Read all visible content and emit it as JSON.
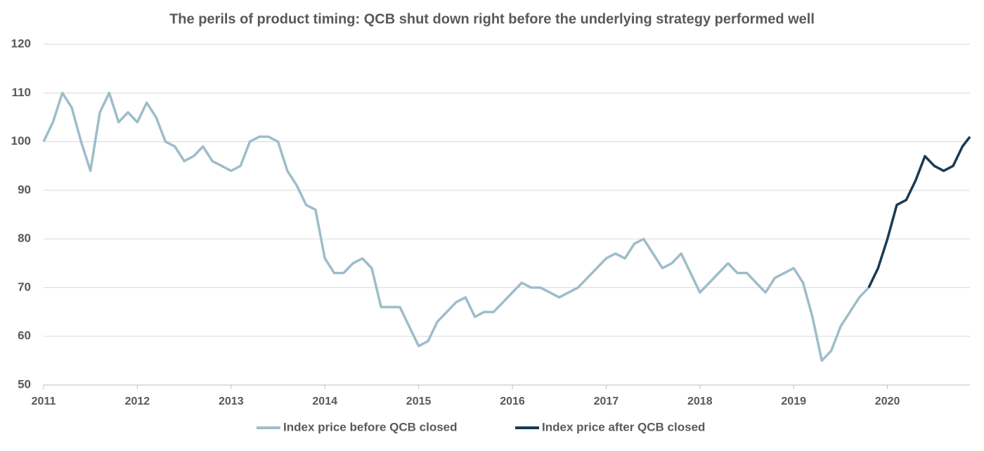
{
  "chart_data": {
    "type": "line",
    "title": "The perils of product timing: QCB shut down right before the underlying strategy performed well",
    "xlim": [
      2011,
      2020.88
    ],
    "xticks": [
      2011,
      2012,
      2013,
      2014,
      2015,
      2016,
      2017,
      2018,
      2019,
      2020
    ],
    "ylim": [
      50,
      120
    ],
    "yticks": [
      50,
      60,
      70,
      80,
      90,
      100,
      110,
      120
    ],
    "grid": true,
    "legend": "bottom",
    "series": [
      {
        "name": "Index price before QCB closed",
        "color": "#9dbdc9",
        "x": [
          2011,
          2011.1,
          2011.2,
          2011.3,
          2011.4,
          2011.5,
          2011.6,
          2011.7,
          2011.8,
          2011.9,
          2012,
          2012.1,
          2012.2,
          2012.3,
          2012.4,
          2012.5,
          2012.6,
          2012.7,
          2012.8,
          2012.9,
          2013,
          2013.1,
          2013.2,
          2013.3,
          2013.4,
          2013.5,
          2013.6,
          2013.7,
          2013.8,
          2013.9,
          2014,
          2014.1,
          2014.2,
          2014.3,
          2014.4,
          2014.5,
          2014.6,
          2014.7,
          2014.8,
          2014.9,
          2015,
          2015.1,
          2015.2,
          2015.3,
          2015.4,
          2015.5,
          2015.6,
          2015.7,
          2015.8,
          2015.9,
          2016,
          2016.1,
          2016.2,
          2016.3,
          2016.4,
          2016.5,
          2016.6,
          2016.7,
          2016.8,
          2016.9,
          2017,
          2017.1,
          2017.2,
          2017.3,
          2017.4,
          2017.5,
          2017.6,
          2017.7,
          2017.8,
          2017.9,
          2018,
          2018.1,
          2018.2,
          2018.3,
          2018.4,
          2018.5,
          2018.6,
          2018.7,
          2018.8,
          2018.9,
          2019,
          2019.1,
          2019.2,
          2019.3,
          2019.4,
          2019.5,
          2019.6,
          2019.7,
          2019.8
        ],
        "values": [
          100,
          104,
          110,
          107,
          100,
          94,
          106,
          110,
          104,
          106,
          104,
          108,
          105,
          100,
          99,
          96,
          97,
          99,
          96,
          95,
          94,
          95,
          100,
          101,
          101,
          100,
          94,
          91,
          87,
          86,
          76,
          73,
          73,
          75,
          76,
          74,
          66,
          66,
          66,
          62,
          58,
          59,
          63,
          65,
          67,
          68,
          64,
          65,
          65,
          67,
          69,
          71,
          70,
          70,
          69,
          68,
          69,
          70,
          72,
          74,
          76,
          77,
          76,
          79,
          80,
          77,
          74,
          75,
          77,
          73,
          69,
          71,
          73,
          75,
          73,
          73,
          71,
          69,
          72,
          73,
          74,
          71,
          64,
          55,
          57,
          62,
          65,
          68,
          70
        ]
      },
      {
        "name": "Index price after QCB closed",
        "color": "#1b3a52",
        "x": [
          2019.8,
          2019.9,
          2020,
          2020.1,
          2020.2,
          2020.3,
          2020.4,
          2020.5,
          2020.6,
          2020.7,
          2020.8,
          2020.88
        ],
        "values": [
          70,
          74,
          80,
          87,
          88,
          92,
          97,
          95,
          94,
          95,
          99,
          101
        ]
      }
    ]
  }
}
